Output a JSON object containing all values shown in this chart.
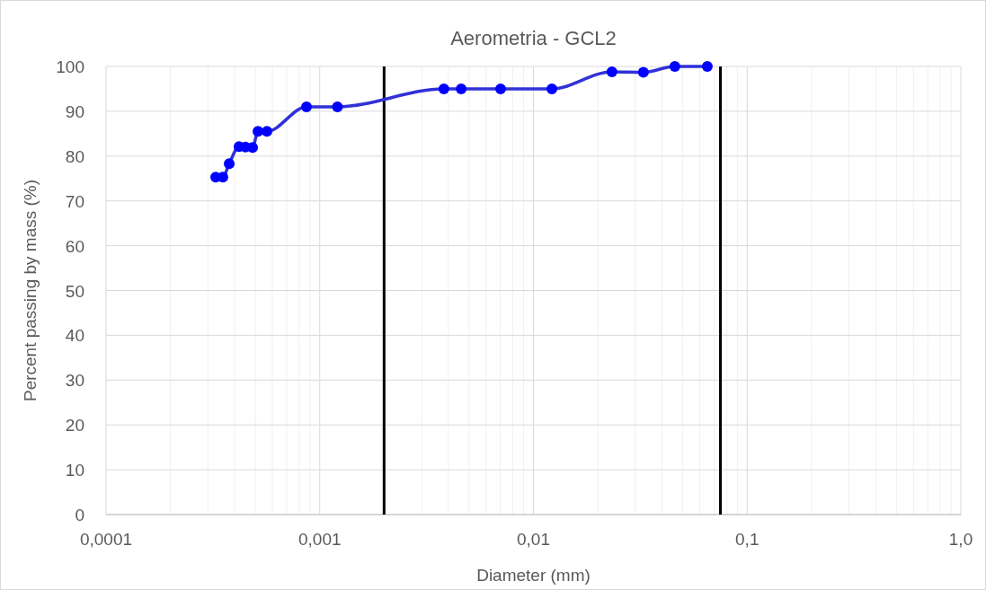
{
  "chart_data": {
    "type": "line",
    "title": "Aerometria - GCL2",
    "xlabel": "Diameter (mm)",
    "ylabel": "Percent passing by mass (%)",
    "log": "x",
    "grid": true,
    "marker": "circle",
    "line_style": "solid",
    "xlim": [
      0.0001,
      1
    ],
    "xticks": [
      {
        "value": 0.0001,
        "label": "0,0001"
      },
      {
        "value": 0.001,
        "label": "0,001"
      },
      {
        "value": 0.01,
        "label": "0,01"
      },
      {
        "value": 0.1,
        "label": "0,1"
      },
      {
        "value": 1,
        "label": "1,0"
      }
    ],
    "ylim": [
      0,
      100
    ],
    "yticks": [
      0,
      10,
      20,
      30,
      40,
      50,
      60,
      70,
      80,
      90,
      100
    ],
    "series": [
      {
        "color": "#0000ff",
        "x": [
          0.000326,
          0.000352,
          0.000377,
          0.000419,
          0.000449,
          0.000485,
          0.000514,
          0.000566,
          0.000867,
          0.00121,
          0.00381,
          0.00459,
          0.00702,
          0.0122,
          0.0233,
          0.0327,
          0.0459,
          0.0651
        ],
        "values": [
          75.3,
          75.3,
          78.3,
          82.1,
          82,
          81.9,
          85.5,
          85.5,
          91,
          91,
          95,
          95,
          95,
          95,
          98.8,
          98.7,
          100,
          100
        ]
      }
    ],
    "ref_lines": [
      {
        "axis": "x",
        "value": 0.002,
        "color": "#000000"
      },
      {
        "axis": "x",
        "value": 0.075,
        "color": "#000000"
      }
    ]
  }
}
